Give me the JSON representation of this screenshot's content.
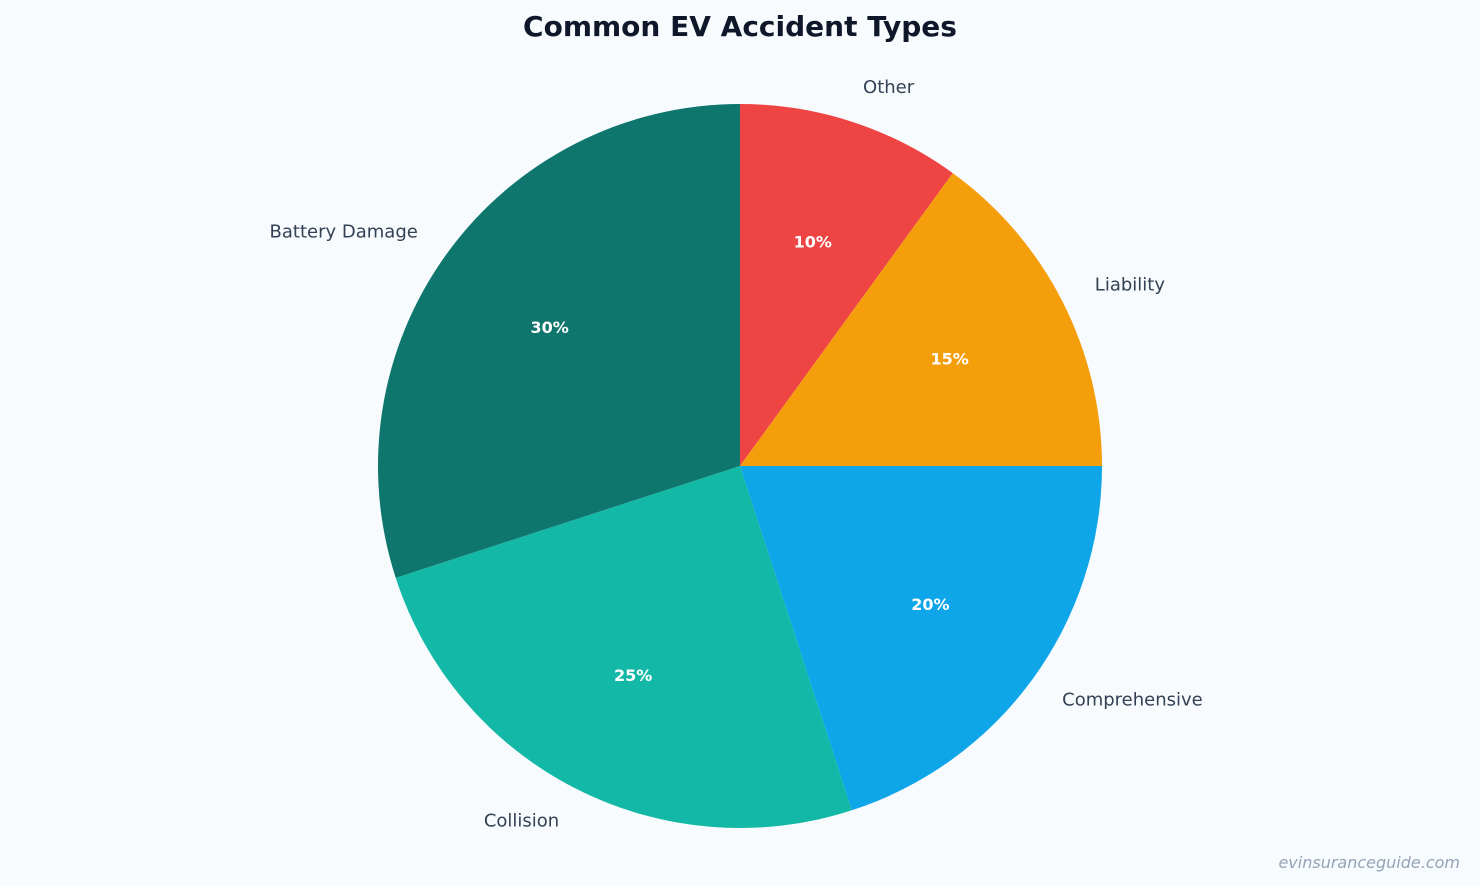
{
  "chart_data": {
    "type": "pie",
    "title": "Common EV Accident Types",
    "start_angle_deg": 90,
    "direction": "clockwise",
    "slices": [
      {
        "label": "Other",
        "value": 10,
        "pct_label": "10%",
        "color": "#ef4444"
      },
      {
        "label": "Liability",
        "value": 15,
        "pct_label": "15%",
        "color": "#f59e0b"
      },
      {
        "label": "Comprehensive",
        "value": 20,
        "pct_label": "20%",
        "color": "#0ea5e9"
      },
      {
        "label": "Collision",
        "value": 25,
        "pct_label": "25%",
        "color": "#14b8a6"
      },
      {
        "label": "Battery Damage",
        "value": 30,
        "pct_label": "30%",
        "color": "#0f766e"
      }
    ]
  },
  "watermark": "evinsuranceguide.com"
}
